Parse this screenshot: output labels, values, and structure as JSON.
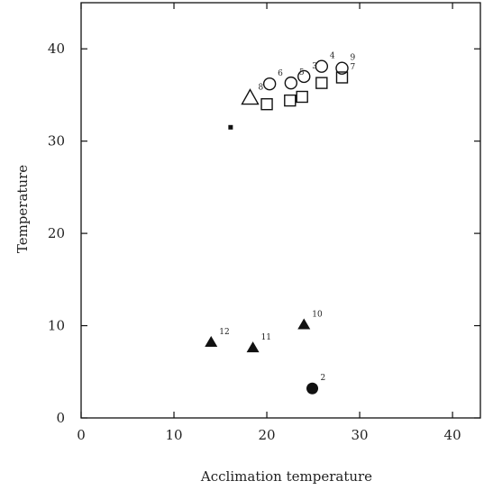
{
  "chart_data": {
    "type": "scatter",
    "title": "",
    "xlabel": "Acclimation temperature",
    "ylabel": "Temperature",
    "xlim": [
      0,
      43
    ],
    "ylim": [
      0,
      45
    ],
    "xticks": [
      0,
      10,
      20,
      30,
      40
    ],
    "yticks": [
      0,
      10,
      20,
      30,
      40
    ],
    "grid": false,
    "corner_label": "",
    "series": [
      {
        "marker": "open-circle",
        "points": [
          {
            "x": 20.3,
            "y": 36.2,
            "label": "6"
          },
          {
            "x": 22.6,
            "y": 36.3,
            "label": "5"
          },
          {
            "x": 24.0,
            "y": 37.0,
            "label": "3"
          },
          {
            "x": 25.9,
            "y": 38.1,
            "label": "4"
          },
          {
            "x": 28.1,
            "y": 37.9,
            "label": "9"
          }
        ]
      },
      {
        "marker": "open-square",
        "points": [
          {
            "x": 20.0,
            "y": 34.0,
            "label": ""
          },
          {
            "x": 22.5,
            "y": 34.4,
            "label": ""
          },
          {
            "x": 23.8,
            "y": 34.8,
            "label": ""
          },
          {
            "x": 25.9,
            "y": 36.3,
            "label": ""
          },
          {
            "x": 28.1,
            "y": 36.9,
            "label": "7"
          }
        ]
      },
      {
        "marker": "open-triangle",
        "points": [
          {
            "x": 18.2,
            "y": 34.7,
            "label": "8"
          }
        ]
      },
      {
        "marker": "filled-triangle",
        "points": [
          {
            "x": 14.0,
            "y": 8.2,
            "label": "12"
          },
          {
            "x": 18.5,
            "y": 7.6,
            "label": "11"
          },
          {
            "x": 24.0,
            "y": 10.1,
            "label": "10"
          }
        ]
      },
      {
        "marker": "filled-circle",
        "points": [
          {
            "x": 24.9,
            "y": 3.2,
            "label": "2"
          }
        ]
      },
      {
        "marker": "small-filled-square",
        "points": [
          {
            "x": 16.1,
            "y": 31.5,
            "label": ""
          }
        ]
      }
    ]
  }
}
